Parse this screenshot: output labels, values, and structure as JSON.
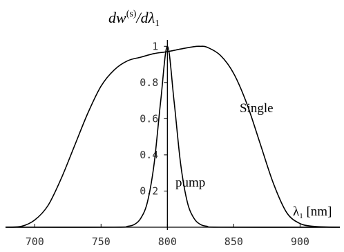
{
  "chart_data": {
    "type": "line",
    "title": "dw(s)/dλ1",
    "title_parts": {
      "main": "dw",
      "sup": "(s)",
      "div": "/d",
      "lambda": "λ",
      "sub": "1"
    },
    "xlabel": "λ₁ [nm]",
    "xlabel_parts": {
      "lambda": "λ",
      "sub": "1",
      "unit": " [nm]"
    },
    "ylabel": "",
    "xlim": [
      678,
      930
    ],
    "ylim": [
      0,
      1.02
    ],
    "grid": false,
    "legend": "none",
    "x_ticks": [
      "700",
      "750",
      "800",
      "850",
      "900"
    ],
    "x_tick_values": [
      700,
      750,
      800,
      850,
      900
    ],
    "y_ticks": [
      "0.2",
      "0.4",
      "0.6",
      "0.8",
      "1"
    ],
    "y_tick_values": [
      0.2,
      0.4,
      0.6,
      0.8,
      1.0
    ],
    "series": [
      {
        "name": "Single",
        "x": [
          678,
          690,
          700,
          710,
          720,
          730,
          740,
          750,
          760,
          770,
          780,
          790,
          800,
          810,
          820,
          825,
          830,
          840,
          850,
          860,
          870,
          880,
          890,
          900,
          910,
          920,
          930
        ],
        "y": [
          0.0,
          0.005,
          0.04,
          0.12,
          0.27,
          0.45,
          0.63,
          0.78,
          0.87,
          0.92,
          0.94,
          0.96,
          0.97,
          0.985,
          0.998,
          1.0,
          0.995,
          0.95,
          0.85,
          0.68,
          0.46,
          0.24,
          0.08,
          0.02,
          0.005,
          0.001,
          0.0
        ]
      },
      {
        "name": "pump",
        "x": [
          678,
          760,
          770,
          775,
          780,
          785,
          790,
          795,
          800,
          805,
          810,
          815,
          820,
          825,
          830,
          840,
          930
        ],
        "y": [
          0.0,
          0.0,
          0.005,
          0.015,
          0.05,
          0.14,
          0.35,
          0.7,
          1.0,
          0.7,
          0.35,
          0.14,
          0.05,
          0.015,
          0.005,
          0.0,
          0.0
        ]
      }
    ],
    "annotations": [
      "Single",
      "pump"
    ]
  }
}
